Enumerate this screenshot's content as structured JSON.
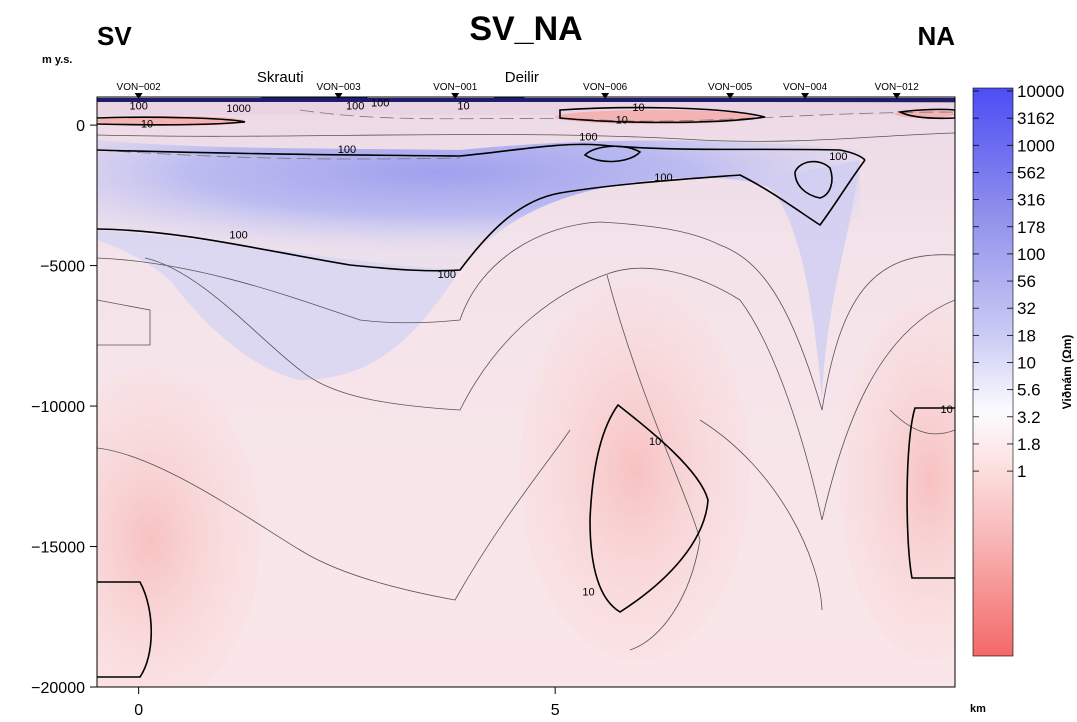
{
  "chart_data": {
    "type": "heatmap",
    "title": "SV_NA",
    "left_label": "SV",
    "right_label": "NA",
    "ylabel": "m y.s.",
    "xlabel": "km",
    "xlim": [
      -0.5,
      9.8
    ],
    "ylim": [
      -20000,
      1000
    ],
    "xticks": [
      0,
      5
    ],
    "yticks": [
      0,
      -5000,
      -10000,
      -15000,
      -20000
    ],
    "stations": [
      {
        "name": "VON−002",
        "x": 0.0
      },
      {
        "name": "VON−003",
        "x": 2.4
      },
      {
        "name": "VON−001",
        "x": 3.8
      },
      {
        "name": "VON−006",
        "x": 5.6
      },
      {
        "name": "VON−005",
        "x": 7.1
      },
      {
        "name": "VON−004",
        "x": 8.0
      },
      {
        "name": "VON−012",
        "x": 9.1
      }
    ],
    "places": [
      {
        "name": "Skrauti",
        "x": 1.7
      },
      {
        "name": "Deilir",
        "x": 4.6
      }
    ],
    "colorbar": {
      "title": "Viðnám (Ωm)",
      "ticks": [
        "10000",
        "3162",
        "1000",
        "562",
        "316",
        "178",
        "100",
        "56",
        "32",
        "18",
        "10",
        "5.6",
        "3.2",
        "1.8",
        "1"
      ],
      "high_color": "#4a4af2",
      "mid_color": "#ffffff",
      "low_color": "#f26a6a"
    },
    "contour_labels": [
      {
        "text": "1000",
        "x": 1.2,
        "y": 600
      },
      {
        "text": "100",
        "x": 0.0,
        "y": 700
      },
      {
        "text": "100",
        "x": 2.6,
        "y": 700
      },
      {
        "text": "100",
        "x": 2.9,
        "y": 800
      },
      {
        "text": "10",
        "x": 3.9,
        "y": 700
      },
      {
        "text": "10",
        "x": 0.1,
        "y": 50
      },
      {
        "text": "10",
        "x": 6.0,
        "y": 650
      },
      {
        "text": "10",
        "x": 5.8,
        "y": 200
      },
      {
        "text": "100",
        "x": 2.5,
        "y": -850
      },
      {
        "text": "100",
        "x": 5.4,
        "y": -400
      },
      {
        "text": "100",
        "x": 8.4,
        "y": -1100
      },
      {
        "text": "100",
        "x": 6.3,
        "y": -1850
      },
      {
        "text": "100",
        "x": 1.2,
        "y": -3900
      },
      {
        "text": "100",
        "x": 3.7,
        "y": -5300
      },
      {
        "text": "10",
        "x": 6.2,
        "y": -11250
      },
      {
        "text": "10",
        "x": 5.4,
        "y": -16600
      },
      {
        "text": "10",
        "x": 9.7,
        "y": -10100
      }
    ]
  }
}
